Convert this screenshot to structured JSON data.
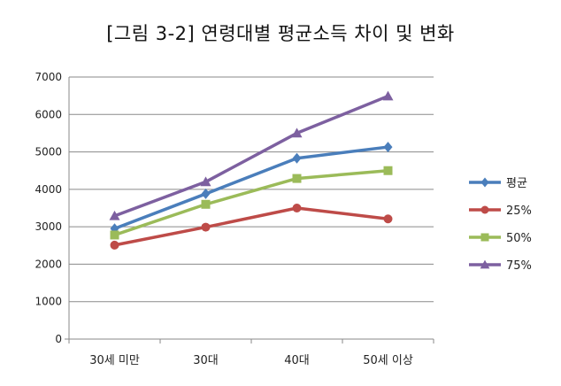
{
  "chart_data": {
    "type": "line",
    "title": "[그림 3-2] 연령대별 평균소득 차이 및 변화",
    "xlabel": "",
    "ylabel": "",
    "categories": [
      "30세 미만",
      "30대",
      "40대",
      "50세 이상"
    ],
    "ylim": [
      0,
      7000
    ],
    "yticks": [
      0,
      1000,
      2000,
      3000,
      4000,
      5000,
      6000,
      7000
    ],
    "grid": "horizontal",
    "legend_position": "right",
    "series": [
      {
        "name": "평균",
        "values": [
          2950,
          3880,
          4830,
          5130
        ],
        "color": "#4a7ebb",
        "marker": "diamond"
      },
      {
        "name": "25%",
        "values": [
          2510,
          2990,
          3500,
          3210
        ],
        "color": "#be4b48",
        "marker": "circle"
      },
      {
        "name": "50%",
        "values": [
          2780,
          3600,
          4290,
          4500
        ],
        "color": "#9bbb59",
        "marker": "square"
      },
      {
        "name": "75%",
        "values": [
          3290,
          4200,
          5500,
          6490
        ],
        "color": "#7d60a0",
        "marker": "triangle"
      }
    ]
  }
}
